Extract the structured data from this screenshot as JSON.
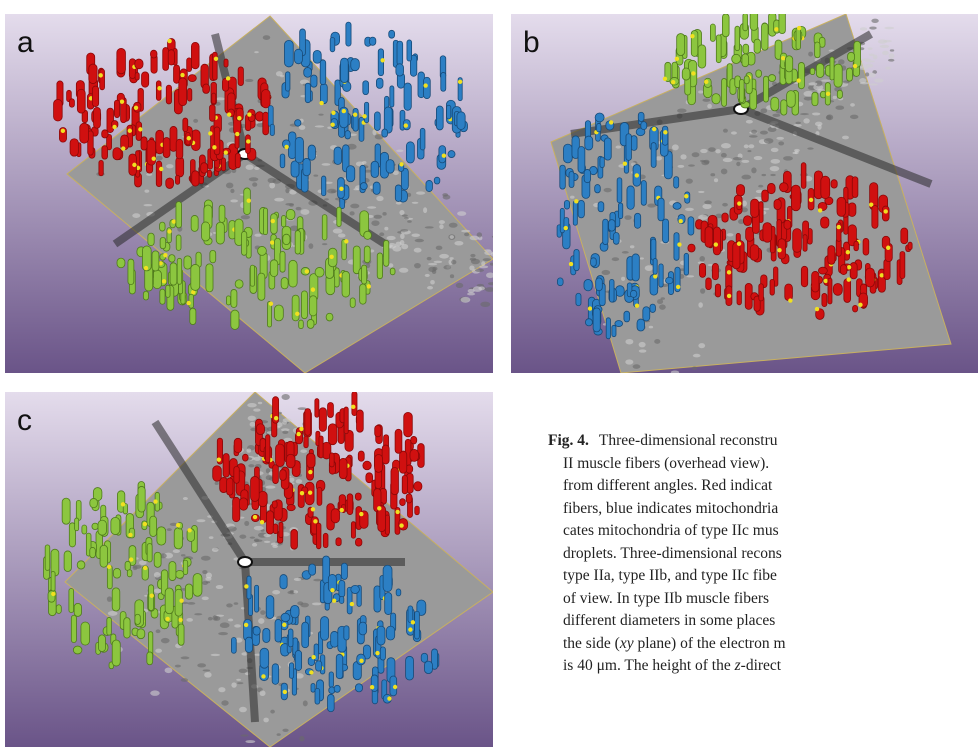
{
  "figure": {
    "panels": [
      {
        "label": "a"
      },
      {
        "label": "b"
      },
      {
        "label": "c"
      }
    ],
    "caption": {
      "label": "Fig. 4.",
      "lines": [
        [
          {
            "text": "Three-dimensional reconstru"
          }
        ],
        [
          {
            "text": "II muscle fibers (overhead view)."
          }
        ],
        [
          {
            "text": "from different angles. Red indicat"
          }
        ],
        [
          {
            "text": "fibers, blue indicates mitochondria"
          }
        ],
        [
          {
            "text": "cates mitochondria of type IIc mus"
          }
        ],
        [
          {
            "text": "droplets. Three-dimensional recons"
          }
        ],
        [
          {
            "text": "type IIa, type IIb, and type IIc fibe"
          }
        ],
        [
          {
            "text": "of view. In type IIb muscle fibers"
          }
        ],
        [
          {
            "text": "different diameters in some places"
          }
        ],
        [
          {
            "text": "the side ("
          },
          {
            "text": "xy",
            "italic": true
          },
          {
            "text": " plane) of the electron m"
          }
        ],
        [
          {
            "text": "is 40 μm. The height of the "
          },
          {
            "text": "z",
            "italic": true
          },
          {
            "text": "-direct"
          }
        ]
      ]
    }
  }
}
